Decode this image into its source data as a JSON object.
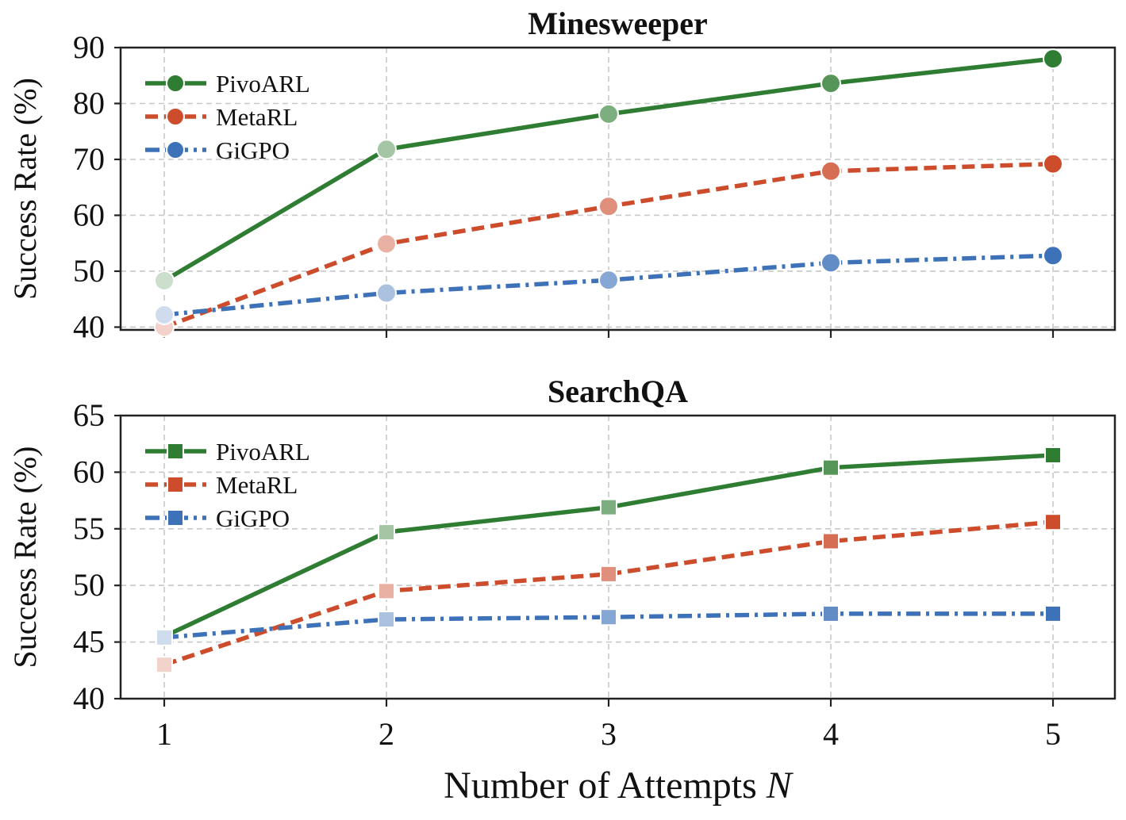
{
  "chart_data": [
    {
      "type": "line",
      "title": "Minesweeper",
      "xlabel": "",
      "ylabel": "Success Rate (%)",
      "x": [
        1,
        2,
        3,
        4,
        5
      ],
      "xticks": [
        "",
        "",
        "",
        "",
        ""
      ],
      "ylim": [
        39.5,
        90
      ],
      "yticks": [
        40,
        50,
        60,
        70,
        80,
        90
      ],
      "ytick_labels": [
        "40",
        "50",
        "60",
        "70",
        "80",
        "90"
      ],
      "grid": true,
      "legend_position": "top-left",
      "marker": "circle",
      "series": [
        {
          "name": "PivoARL",
          "values": [
            48.3,
            71.8,
            78.1,
            83.6,
            88.0
          ],
          "color": "#2e7d32",
          "dash": "solid"
        },
        {
          "name": "MetaRL",
          "values": [
            40.0,
            54.9,
            61.6,
            67.9,
            69.2
          ],
          "color": "#cc4c2c",
          "dash": "dashed"
        },
        {
          "name": "GiGPO",
          "values": [
            42.2,
            46.1,
            48.4,
            51.5,
            52.8
          ],
          "color": "#3d72b8",
          "dash": "dashdot"
        }
      ]
    },
    {
      "type": "line",
      "title": "SearchQA",
      "xlabel": "Number of Attempts",
      "xlabel_var": "N",
      "ylabel": "Success Rate (%)",
      "x": [
        1,
        2,
        3,
        4,
        5
      ],
      "xticks": [
        "1",
        "2",
        "3",
        "4",
        "5"
      ],
      "ylim": [
        40,
        65
      ],
      "yticks": [
        40,
        45,
        50,
        55,
        60,
        65
      ],
      "ytick_labels": [
        "40",
        "45",
        "50",
        "55",
        "60",
        "65"
      ],
      "grid": true,
      "legend_position": "top-left",
      "marker": "square",
      "series": [
        {
          "name": "PivoARL",
          "values": [
            45.5,
            54.7,
            56.9,
            60.4,
            61.5
          ],
          "color": "#2e7d32",
          "dash": "solid"
        },
        {
          "name": "MetaRL",
          "values": [
            43.0,
            49.5,
            51.0,
            53.9,
            55.6
          ],
          "color": "#cc4c2c",
          "dash": "dashed"
        },
        {
          "name": "GiGPO",
          "values": [
            45.4,
            47.0,
            47.2,
            47.5,
            47.5
          ],
          "color": "#3d72b8",
          "dash": "dashdot"
        }
      ]
    }
  ]
}
